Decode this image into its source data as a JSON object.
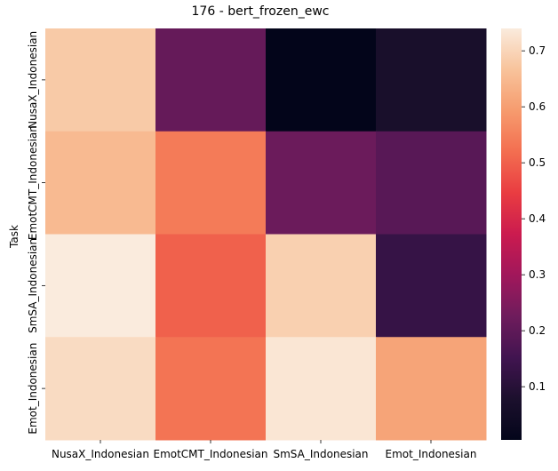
{
  "chart_data": {
    "type": "heatmap",
    "title": "176 - bert_frozen_ewc",
    "xlabel": "",
    "ylabel": "Task",
    "x_categories": [
      "NusaX_Indonesian",
      "EmotCMT_Indonesian",
      "SmSA_Indonesian",
      "Emot_Indonesian"
    ],
    "y_categories": [
      "NusaX_Indonesian",
      "EmotCMT_Indonesian",
      "SmSA_Indonesian",
      "Emot_Indonesian"
    ],
    "values": [
      [
        0.68,
        0.21,
        0.005,
        0.07
      ],
      [
        0.65,
        0.54,
        0.22,
        0.19
      ],
      [
        0.74,
        0.5,
        0.69,
        0.13
      ],
      [
        0.71,
        0.53,
        0.73,
        0.61
      ]
    ],
    "colorbar": {
      "min": 0.005,
      "max": 0.74,
      "ticks": [
        0.1,
        0.2,
        0.3,
        0.4,
        0.5,
        0.6,
        0.7
      ],
      "tick_labels": [
        "0.1",
        "0.2",
        "0.3",
        "0.4",
        "0.5",
        "0.6",
        "0.7"
      ],
      "colormap": "rocket"
    },
    "grid": false,
    "legend": "colorbar-right"
  }
}
